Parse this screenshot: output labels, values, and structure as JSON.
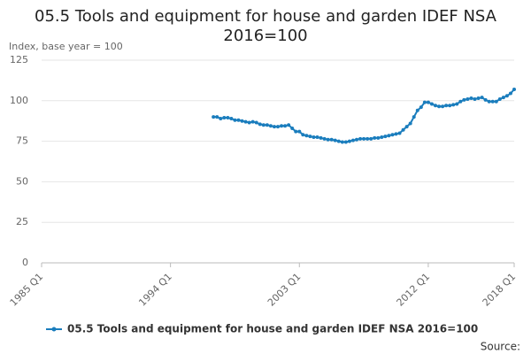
{
  "chart_data": {
    "type": "line",
    "title": "05.5 Tools and equipment for house and garden IDEF NSA 2016=100",
    "ylabel": "Index, base year = 100",
    "source": "Source:",
    "categories": [
      "1985 Q1",
      null,
      null,
      null,
      null,
      null,
      null,
      null,
      null,
      null,
      null,
      null,
      null,
      null,
      null,
      null,
      null,
      null,
      null,
      null,
      null,
      null,
      null,
      null,
      null,
      null,
      null,
      null,
      null,
      null,
      null,
      null,
      null,
      null,
      null,
      null,
      "1994 Q1",
      null,
      null,
      null,
      null,
      null,
      null,
      null,
      null,
      null,
      null,
      null,
      null,
      null,
      null,
      null,
      null,
      null,
      null,
      null,
      null,
      null,
      null,
      null,
      null,
      null,
      null,
      null,
      null,
      null,
      null,
      null,
      null,
      null,
      null,
      null,
      "2003 Q1",
      null,
      null,
      null,
      null,
      null,
      null,
      null,
      null,
      null,
      null,
      null,
      null,
      null,
      null,
      null,
      null,
      null,
      null,
      null,
      null,
      null,
      null,
      null,
      null,
      null,
      null,
      null,
      null,
      null,
      null,
      null,
      null,
      null,
      null,
      null,
      "2012 Q1",
      null,
      null,
      null,
      null,
      null,
      null,
      null,
      null,
      null,
      null,
      null,
      null,
      null,
      null,
      null,
      null,
      null,
      null,
      null,
      null,
      null,
      null,
      null,
      "2018 Q1"
    ],
    "series": [
      {
        "name": "05.5 Tools and equipment for house and garden IDEF NSA 2016=100",
        "color": "#1a7dbd",
        "values": [
          null,
          null,
          null,
          null,
          null,
          null,
          null,
          null,
          null,
          null,
          null,
          null,
          null,
          null,
          null,
          null,
          null,
          null,
          null,
          null,
          null,
          null,
          null,
          null,
          null,
          null,
          null,
          null,
          null,
          null,
          null,
          null,
          null,
          null,
          null,
          null,
          null,
          null,
          null,
          null,
          null,
          null,
          null,
          null,
          null,
          null,
          null,
          null,
          90,
          90,
          89,
          89.5,
          89.5,
          89,
          88,
          88,
          87.5,
          87,
          86.5,
          87,
          86.5,
          85.5,
          85,
          85,
          84.5,
          84,
          84,
          84.5,
          84.5,
          85,
          83,
          81,
          81,
          79,
          78.5,
          78,
          77.5,
          77.5,
          77,
          76.5,
          76,
          76,
          75.5,
          75,
          74.5,
          74.5,
          75,
          75.5,
          76,
          76.5,
          76.5,
          76.5,
          76.5,
          77,
          77,
          77.5,
          78,
          78.5,
          79,
          79.5,
          80,
          82,
          84,
          86,
          90,
          94,
          96,
          99,
          99,
          98,
          97,
          96.5,
          96.5,
          97,
          97,
          97.5,
          98,
          99.5,
          100.5,
          101,
          101.5,
          101,
          101.5,
          102,
          100.5,
          99.5,
          99.5,
          99.5,
          101,
          102,
          103,
          104.5,
          107
        ]
      }
    ],
    "ylim": [
      0,
      125
    ],
    "yticks": [
      0,
      25,
      50,
      75,
      100,
      125
    ],
    "grid": true
  }
}
